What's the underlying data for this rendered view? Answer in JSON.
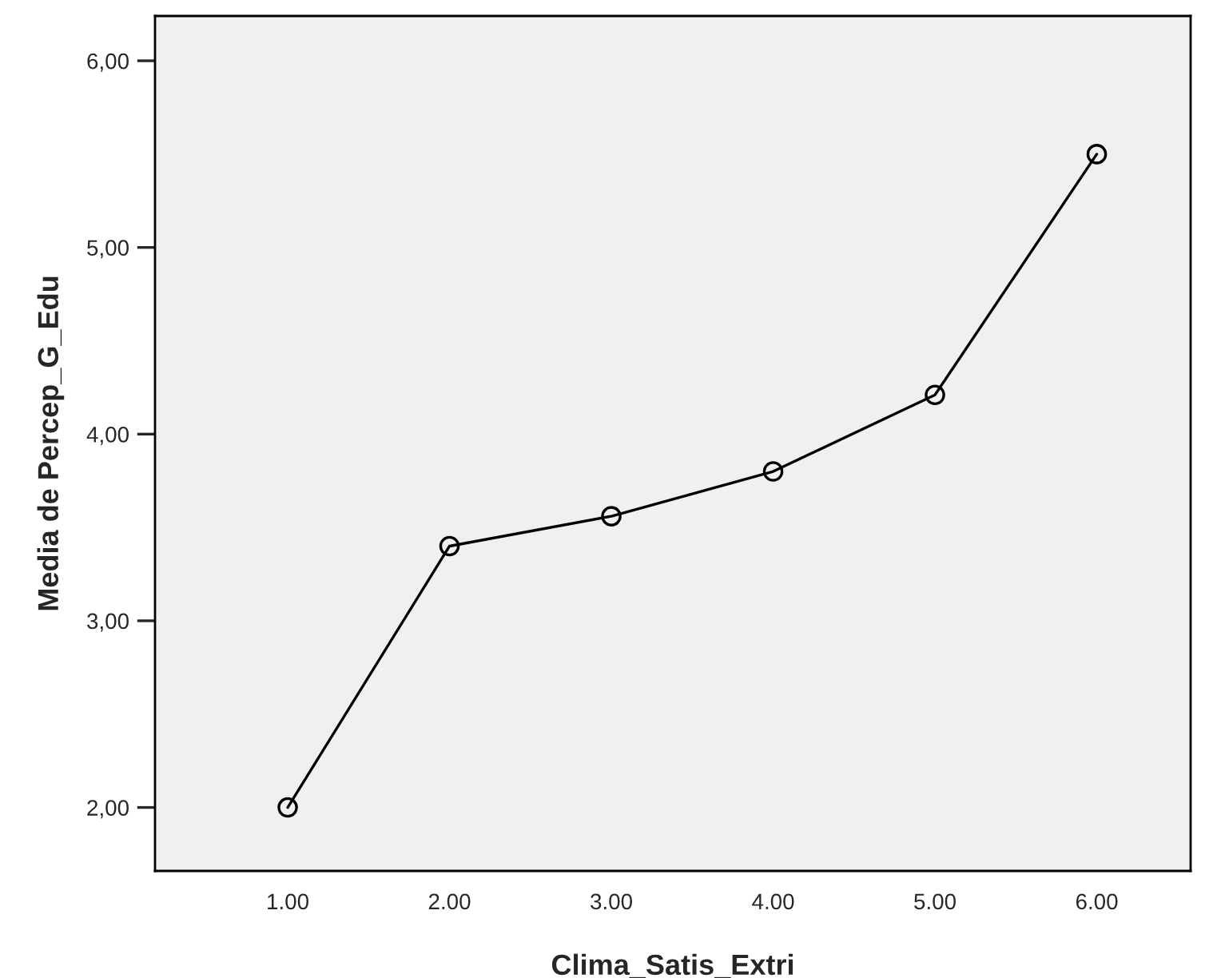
{
  "chart_data": {
    "type": "line",
    "xlabel": "Clima_Satis_Extri",
    "ylabel": "Media de Percep_G_Edu",
    "categories": [
      "1.00",
      "2.00",
      "3.00",
      "4.00",
      "5.00",
      "6.00"
    ],
    "series": [
      {
        "color": "#000000",
        "values": [
          2.0,
          3.4,
          3.56,
          3.8,
          4.21,
          5.5
        ]
      }
    ],
    "ylim": [
      1.66,
      6.24
    ],
    "yticks": [
      {
        "value": 2,
        "label": "2,00"
      },
      {
        "value": 3,
        "label": "3,00"
      },
      {
        "value": 4,
        "label": "4,00"
      },
      {
        "value": 5,
        "label": "5,00"
      },
      {
        "value": 6,
        "label": "6,00"
      }
    ],
    "marker": "circle",
    "line_style": "solid",
    "grid": false,
    "legend": false
  }
}
